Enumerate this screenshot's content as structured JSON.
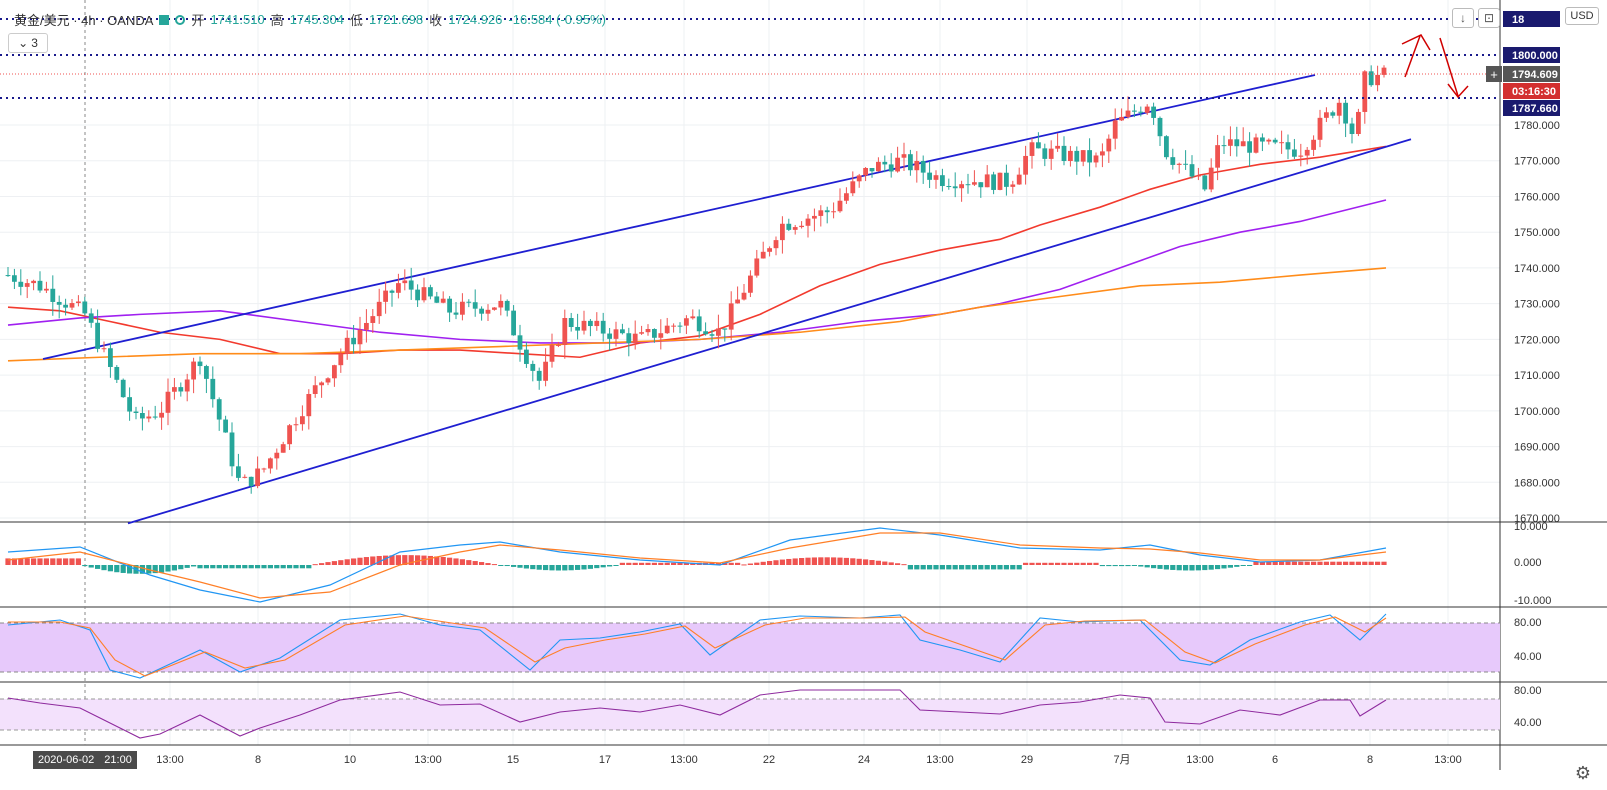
{
  "legend": {
    "symbol": "黄金/美元 · 4h · OANDA",
    "open_label": "开",
    "open": "1741.510",
    "high_label": "高",
    "high": "1745.304",
    "low_label": "低",
    "low": "1721.698",
    "close_label": "收",
    "close": "1724.926",
    "change": "-16.584 (-0.95%)"
  },
  "collapse_label": "3",
  "currency_button": "USD",
  "crosshair_date": "2020-06-02",
  "crosshair_time": "21:00",
  "price_axis": {
    "ticks": [
      "1780.000",
      "1770.000",
      "1760.000",
      "1750.000",
      "1740.000",
      "1730.000",
      "1720.000",
      "1710.000",
      "1700.000",
      "1690.000",
      "1680.000",
      "1670.000"
    ],
    "labels": [
      {
        "text": "18",
        "kind": "level-dark"
      },
      {
        "text": "1800.000",
        "kind": "level-dark"
      },
      {
        "text": "1794.609",
        "kind": "last-price"
      },
      {
        "text": "03:16:30",
        "kind": "countdown"
      },
      {
        "text": "1787.660",
        "kind": "level-dark"
      }
    ]
  },
  "macd_axis": [
    "10.000",
    "0.000",
    "-10.000"
  ],
  "stoch_axis": [
    "80.00",
    "40.00"
  ],
  "rsi_axis": [
    "80.00",
    "40.00"
  ],
  "time_axis": [
    "13:00",
    "8",
    "10",
    "13:00",
    "15",
    "17",
    "13:00",
    "22",
    "24",
    "13:00",
    "29",
    "7月",
    "13:00",
    "6",
    "8",
    "13:00"
  ],
  "colors": {
    "up": "#ef5350",
    "down": "#26a69a",
    "channel": "#1f1fd1",
    "ma_fast": "#f23a2e",
    "ma_mid": "#a020f0",
    "ma_slow": "#ff8c1a",
    "level": "#1a1a8c",
    "macd_line": "#2196f3",
    "signal_line": "#ff7f27",
    "stoch_band": "#e7c9fb",
    "rsi_band": "#f3e1fc",
    "rsi_line": "#8e2a9e",
    "arrow": "#d00000"
  },
  "icons": [
    "chevron-down-icon",
    "download-icon",
    "screenshot-icon",
    "plus-icon",
    "gear-icon"
  ]
}
